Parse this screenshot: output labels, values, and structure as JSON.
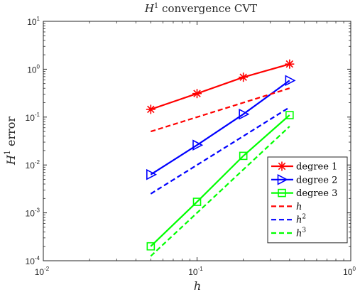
{
  "chart_data": {
    "type": "line",
    "title": "H¹ convergence CVT",
    "title_base": "H",
    "title_sup": "1",
    "title_rest": " convergence CVT",
    "xlabel": "h",
    "ylabel_base": "H",
    "ylabel_sup": "1",
    "ylabel_rest": " error",
    "xscale": "log",
    "yscale": "log",
    "xlim": [
      0.01,
      1
    ],
    "ylim": [
      0.0001,
      10
    ],
    "grid": false,
    "legend_position": "bottom-right",
    "x_ticks": [
      {
        "value": 0.01,
        "base": "10",
        "exp": "-2"
      },
      {
        "value": 0.1,
        "base": "10",
        "exp": "-1"
      },
      {
        "value": 1,
        "base": "10",
        "exp": "0"
      }
    ],
    "y_ticks": [
      {
        "value": 0.0001,
        "base": "10",
        "exp": "-4"
      },
      {
        "value": 0.001,
        "base": "10",
        "exp": "-3"
      },
      {
        "value": 0.01,
        "base": "10",
        "exp": "-2"
      },
      {
        "value": 0.1,
        "base": "10",
        "exp": "-1"
      },
      {
        "value": 1,
        "base": "10",
        "exp": "0"
      },
      {
        "value": 10,
        "base": "10",
        "exp": "1"
      }
    ],
    "x": [
      0.05,
      0.1,
      0.2,
      0.4
    ],
    "series": [
      {
        "name": "degree 1",
        "legend_base": "degree 1",
        "legend_sup": "",
        "values": [
          0.145,
          0.31,
          0.68,
          1.28
        ],
        "color": "#ff0000",
        "style": "solid",
        "marker": "asterisk"
      },
      {
        "name": "degree 2",
        "legend_base": "degree 2",
        "legend_sup": "",
        "values": [
          0.0063,
          0.026,
          0.115,
          0.58
        ],
        "color": "#0000ff",
        "style": "solid",
        "marker": "triangle-right"
      },
      {
        "name": "degree 3",
        "legend_base": "degree 3",
        "legend_sup": "",
        "values": [
          0.0002,
          0.0017,
          0.0155,
          0.11
        ],
        "color": "#00ff00",
        "style": "solid",
        "marker": "square"
      },
      {
        "name": "h",
        "legend_base": "h",
        "legend_sup": "",
        "values": [
          0.05,
          0.1,
          0.2,
          0.4
        ],
        "color": "#ff0000",
        "style": "dashed",
        "marker": "none"
      },
      {
        "name": "h^2",
        "legend_base": "h",
        "legend_sup": "2",
        "values": [
          0.0025,
          0.01,
          0.04,
          0.16
        ],
        "color": "#0000ff",
        "style": "dashed",
        "marker": "none"
      },
      {
        "name": "h^3",
        "legend_base": "h",
        "legend_sup": "3",
        "values": [
          0.000125,
          0.001,
          0.008,
          0.064
        ],
        "color": "#00ff00",
        "style": "dashed",
        "marker": "none"
      }
    ]
  }
}
